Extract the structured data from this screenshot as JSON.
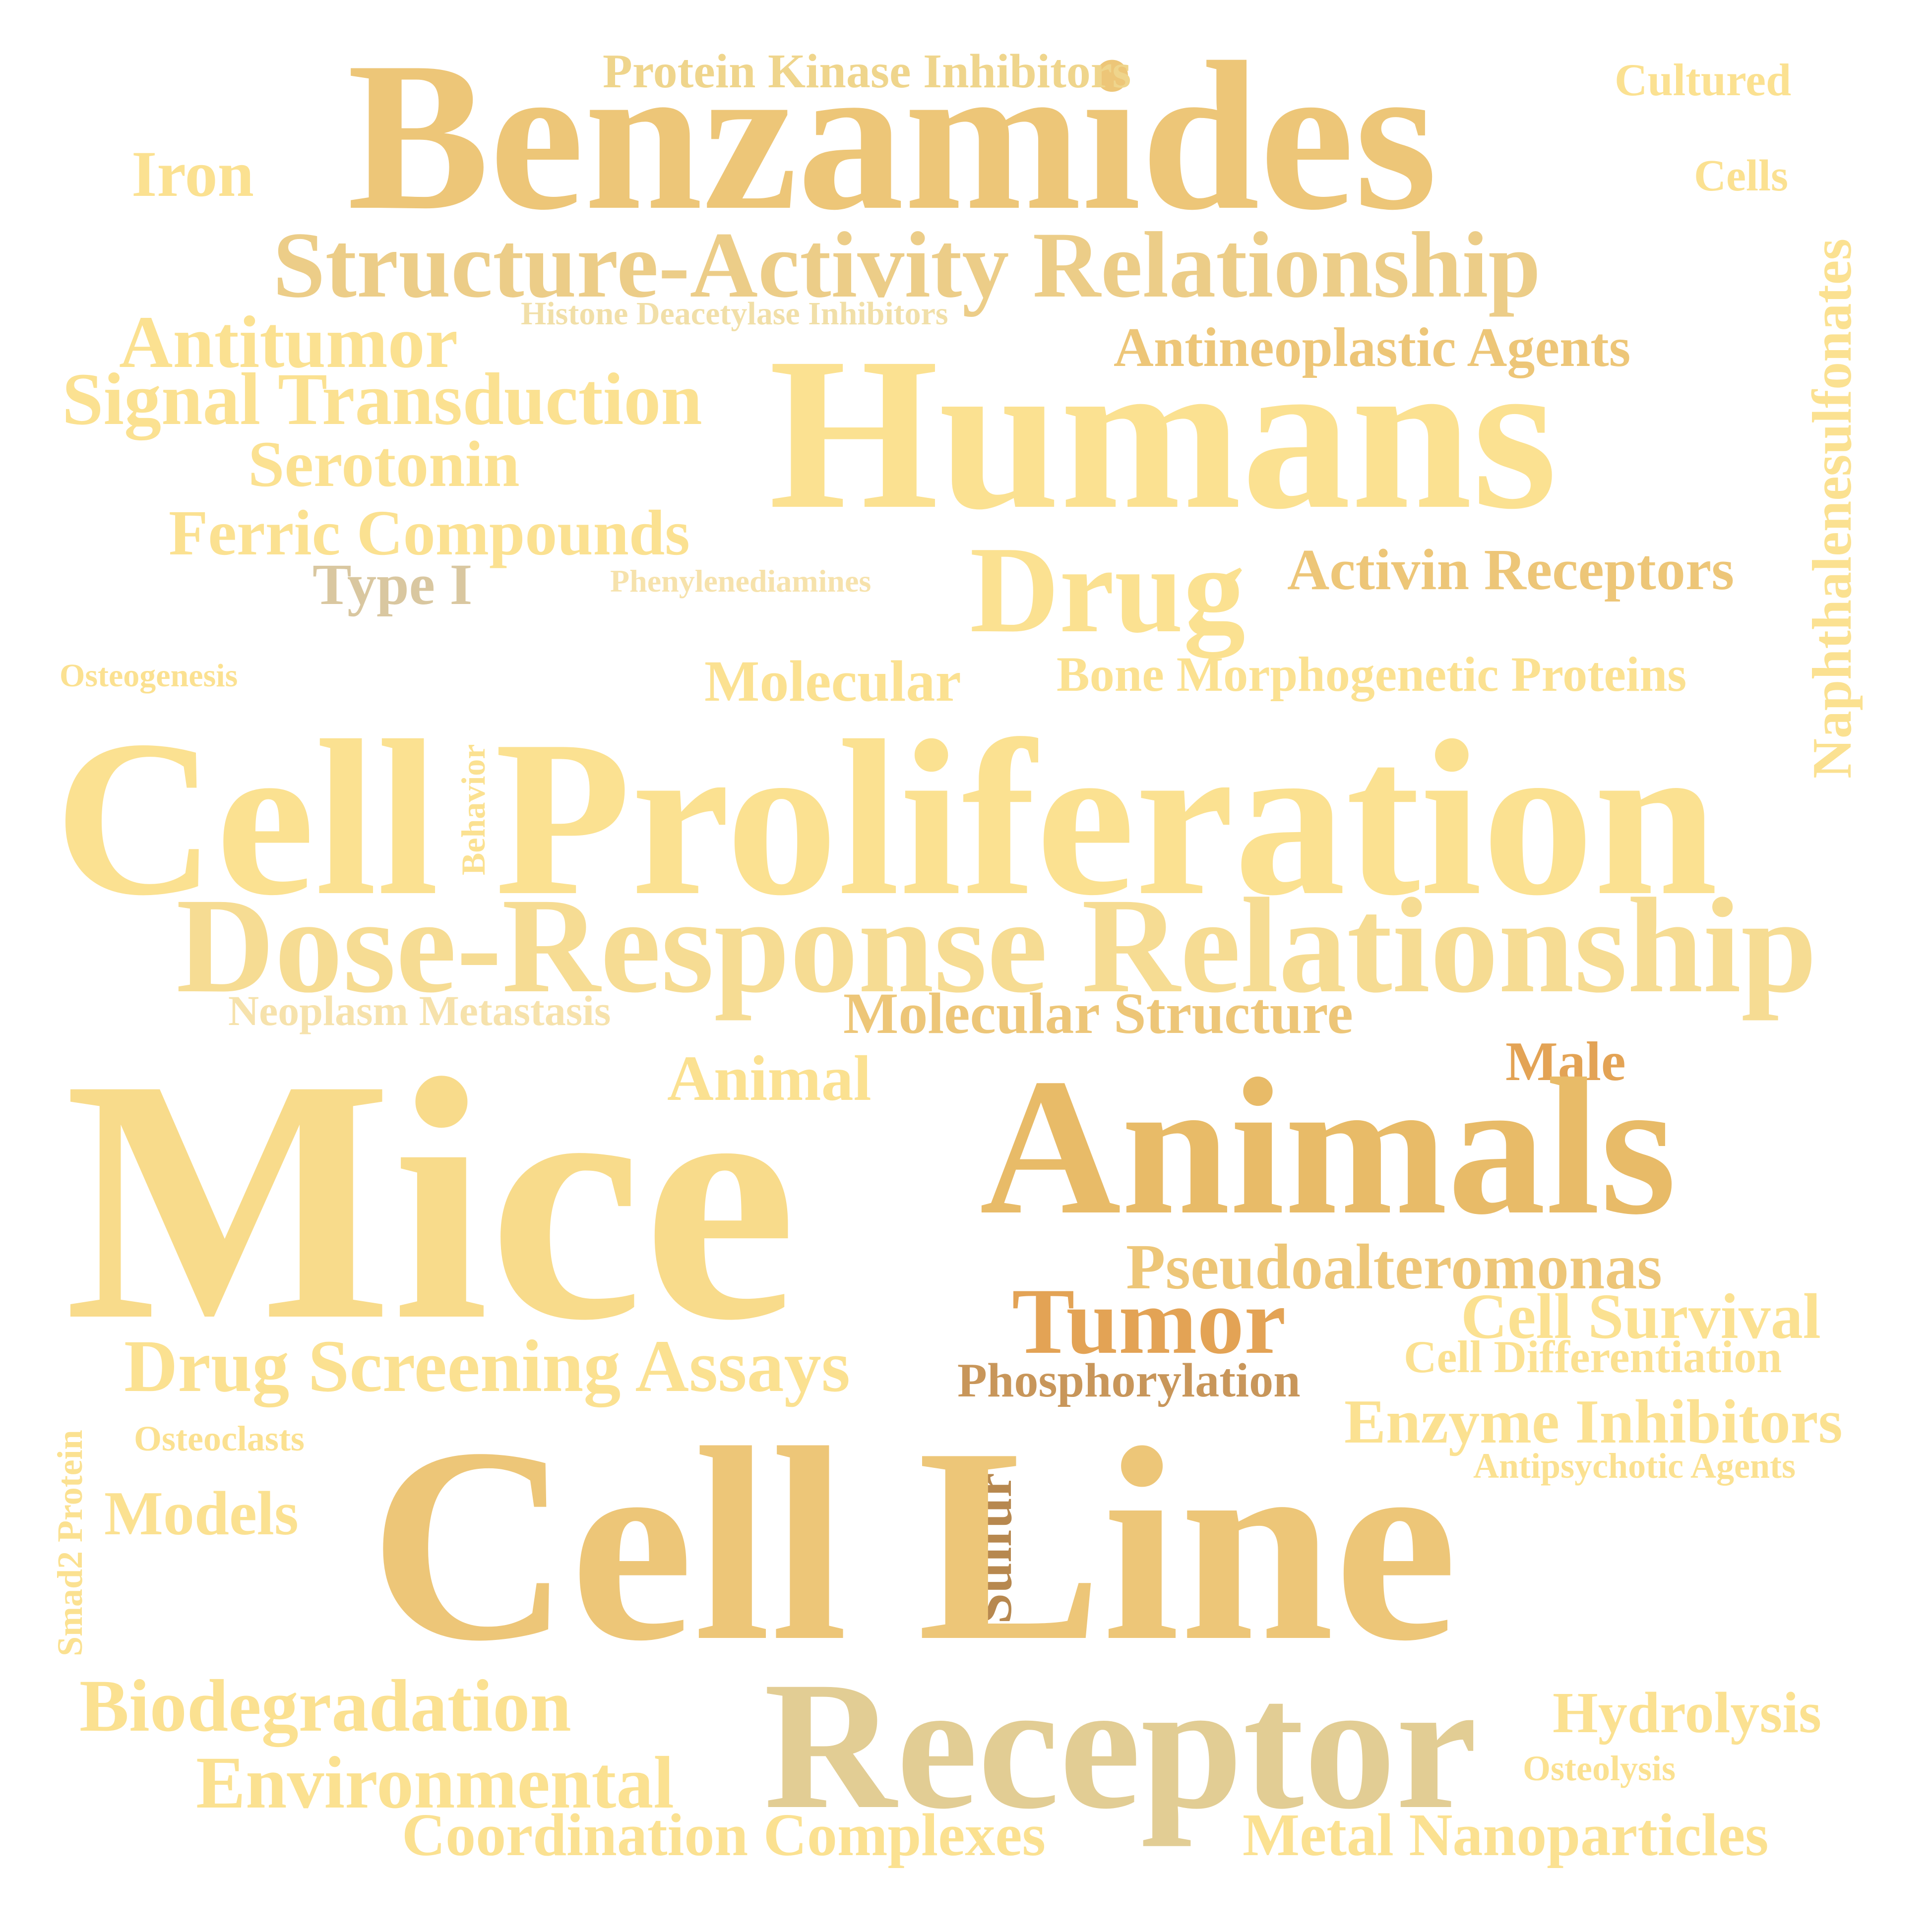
{
  "words": [
    {
      "text": "Benzamides",
      "color": "#edc678"
    },
    {
      "text": "Protein Kinase Inhibitors",
      "color": "#efd58c"
    },
    {
      "text": "Cultured",
      "color": "#fbe191"
    },
    {
      "text": "Iron",
      "color": "#fbe191"
    },
    {
      "text": "Cells",
      "color": "#fbe191"
    },
    {
      "text": "Naphthalenesulfonates",
      "color": "#fbe191"
    },
    {
      "text": "Structure-Activity Relationship",
      "color": "#eccd88"
    },
    {
      "text": "Histone Deacetylase Inhibitors",
      "color": "#f1dfa8"
    },
    {
      "text": "Antitumor",
      "color": "#fbe191"
    },
    {
      "text": "Antineoplastic Agents",
      "color": "#edc678"
    },
    {
      "text": "Signal Transduction",
      "color": "#fbe191"
    },
    {
      "text": "Humans",
      "color": "#fbe191"
    },
    {
      "text": "Serotonin",
      "color": "#fbe191"
    },
    {
      "text": "Ferric Compounds",
      "color": "#fbe191"
    },
    {
      "text": "Type I",
      "color": "#d9c7a0"
    },
    {
      "text": "Phenylenediamines",
      "color": "#f6e2ac"
    },
    {
      "text": "Drug",
      "color": "#fbe191"
    },
    {
      "text": "Activin Receptors",
      "color": "#edc678"
    },
    {
      "text": "Osteogenesis",
      "color": "#fbe191"
    },
    {
      "text": "Molecular",
      "color": "#fbe191"
    },
    {
      "text": "Bone Morphogenetic Proteins",
      "color": "#fbe191"
    },
    {
      "text": "Cell Proliferation",
      "color": "#fbe191"
    },
    {
      "text": "Behavior",
      "color": "#fbe191"
    },
    {
      "text": "Dose-Response Relationship",
      "color": "#f6dc93"
    },
    {
      "text": "Neoplasm Metastasis",
      "color": "#f6e2ac"
    },
    {
      "text": "Molecular Structure",
      "color": "#edc678"
    },
    {
      "text": "Male",
      "color": "#e3a355"
    },
    {
      "text": "Animal",
      "color": "#fbe191"
    },
    {
      "text": "Mice",
      "color": "#f8db8b"
    },
    {
      "text": "Animals",
      "color": "#e8bb68"
    },
    {
      "text": "Pseudoalteromonas",
      "color": "#edc678"
    },
    {
      "text": "Tumor",
      "color": "#e3a355"
    },
    {
      "text": "Cell Survival",
      "color": "#fbe191"
    },
    {
      "text": "Drug Screening Assays",
      "color": "#fbe191"
    },
    {
      "text": "Phosphorylation",
      "color": "#c8965a"
    },
    {
      "text": "Cell Differentiation",
      "color": "#fbe191"
    },
    {
      "text": "Smad2 Protein",
      "color": "#fbe191"
    },
    {
      "text": "Enzyme Inhibitors",
      "color": "#fbe191"
    },
    {
      "text": "Osteoclasts",
      "color": "#fbe191"
    },
    {
      "text": "Antipsychotic Agents",
      "color": "#fbe191"
    },
    {
      "text": "Sulfur",
      "color": "#b7884f"
    },
    {
      "text": "Cell Line",
      "color": "#edc678"
    },
    {
      "text": "Models",
      "color": "#fbe191"
    },
    {
      "text": "Biodegradation",
      "color": "#fbe191"
    },
    {
      "text": "Receptor",
      "color": "#e2cd94"
    },
    {
      "text": "Hydrolysis",
      "color": "#fbe191"
    },
    {
      "text": "Environmental",
      "color": "#fbe191"
    },
    {
      "text": "Osteolysis",
      "color": "#fbe191"
    },
    {
      "text": "Coordination Complexes",
      "color": "#fbe191"
    },
    {
      "text": "Metal Nanoparticles",
      "color": "#fbe191"
    }
  ]
}
